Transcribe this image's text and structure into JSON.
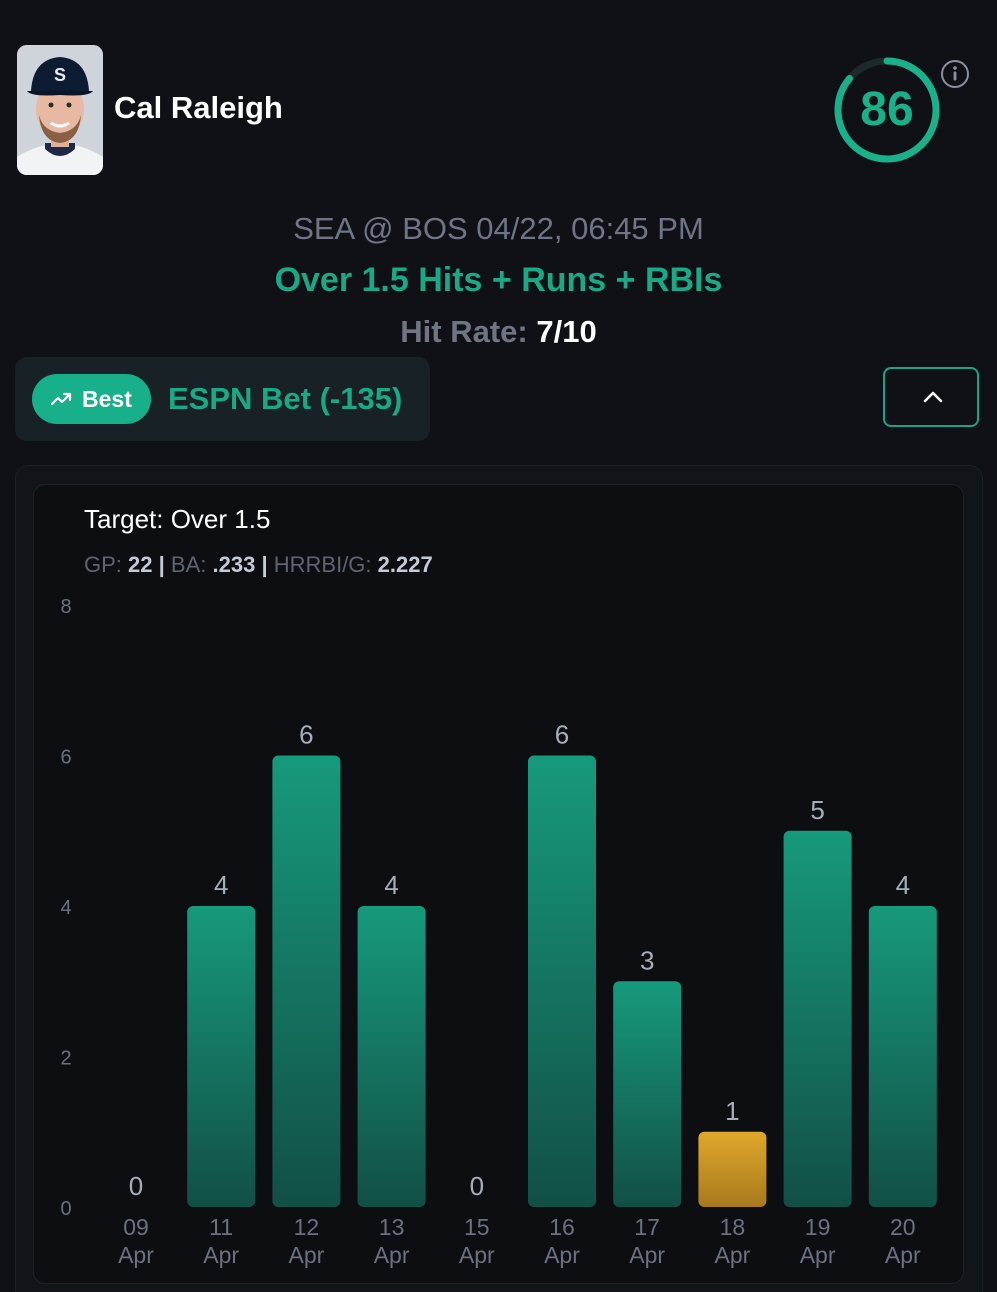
{
  "player": {
    "name": "Cal Raleigh",
    "score": "86",
    "score_fraction": 0.86
  },
  "game": {
    "matchup": "SEA @ BOS 04/22, 06:45 PM",
    "prop": "Over 1.5 Hits + Runs + RBIs",
    "hit_rate_label": "Hit Rate:",
    "hit_rate_value": "7/10"
  },
  "book": {
    "badge_label": "Best",
    "name": "ESPN Bet (-135)"
  },
  "chart_header": {
    "target": "Target: Over 1.5",
    "gp_label": "GP:",
    "gp_value": "22",
    "ba_label": "BA:",
    "ba_value": ".233",
    "hrrbi_label": "HRRBI/G:",
    "hrrbi_value": "2.227",
    "separator": "|"
  },
  "colors": {
    "accent": "#19b08a",
    "hit_bar": "#14957a",
    "miss_bar": "#d9a22a"
  },
  "chart_data": {
    "type": "bar",
    "title": "Target: Over 1.5",
    "xlabel": "",
    "ylabel": "",
    "ylim": [
      0,
      8
    ],
    "yticks": [
      0,
      2,
      4,
      6,
      8
    ],
    "threshold": 1.5,
    "categories": [
      [
        "09",
        "Apr"
      ],
      [
        "11",
        "Apr"
      ],
      [
        "12",
        "Apr"
      ],
      [
        "13",
        "Apr"
      ],
      [
        "15",
        "Apr"
      ],
      [
        "16",
        "Apr"
      ],
      [
        "17",
        "Apr"
      ],
      [
        "18",
        "Apr"
      ],
      [
        "19",
        "Apr"
      ],
      [
        "20",
        "Apr"
      ]
    ],
    "values": [
      0,
      4,
      6,
      4,
      0,
      6,
      3,
      1,
      5,
      4
    ],
    "grid": false,
    "legend": "none"
  }
}
